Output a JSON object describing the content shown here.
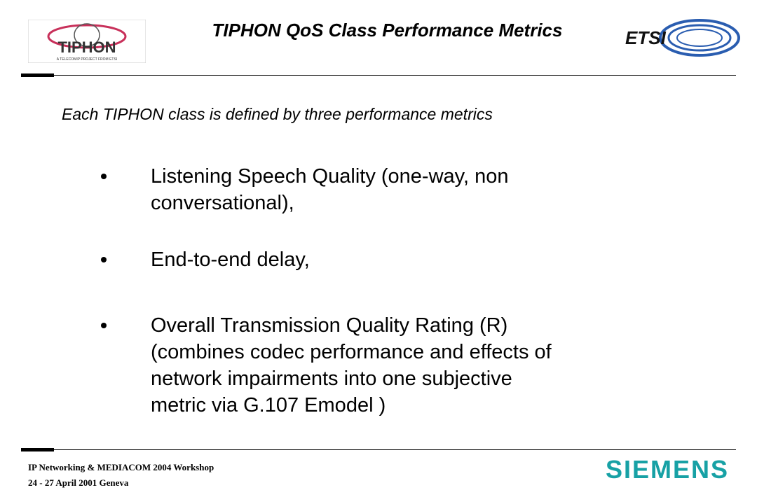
{
  "header": {
    "title": "TIPHON QoS Class Performance Metrics",
    "left_logo": {
      "name": "TIPHON",
      "tagline": "A TELECOMIP PROJECT FROM ETSI"
    },
    "right_logo": {
      "name": "ETSI"
    }
  },
  "body": {
    "intro": "Each TIPHON class is defined by three performance metrics",
    "bullets": [
      {
        "lines": [
          "Listening Speech Quality (one-way, non",
          "conversational),"
        ]
      },
      {
        "lines": [
          "End-to-end delay,"
        ]
      },
      {
        "lines": [
          "Overall Transmission Quality Rating (R)",
          "(combines codec performance and effects of",
          "network impairments into one subjective",
          "metric via G.107 Emodel )"
        ]
      }
    ]
  },
  "footer": {
    "lines": [
      "IP Networking & MEDIACOM 2004 Workshop",
      "24 - 27 April  2001 Geneva"
    ],
    "brand": "SIEMENS"
  }
}
